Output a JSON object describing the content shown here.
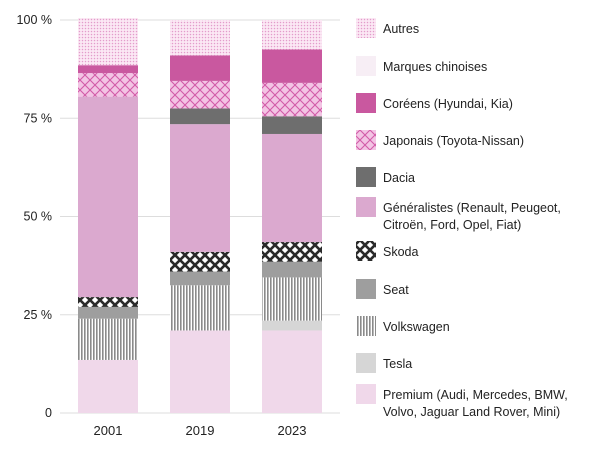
{
  "chart_data": {
    "type": "bar",
    "stacked": true,
    "categories": [
      "2001",
      "2019",
      "2023"
    ],
    "ylim": [
      0,
      100
    ],
    "yticks": [
      0,
      25,
      50,
      75,
      100
    ],
    "ytick_labels": [
      "0",
      "25 %",
      "50 %",
      "75 %",
      "100 %"
    ],
    "grid": "horizontal",
    "legend_position": "right",
    "series": [
      {
        "name": "Premium (Audi, Mercedes, BMW, Volvo, Jaguar Land Rover, Mini)",
        "legend_lines": [
          "Premium (Audi, Mercedes, BMW,",
          "Volvo, Jaguar Land Rover, Mini)"
        ],
        "color": "#f0d8ea",
        "pattern": "solid",
        "values": [
          13.5,
          21,
          21
        ]
      },
      {
        "name": "Tesla",
        "legend_lines": [
          "Tesla"
        ],
        "color": "#d6d6d6",
        "pattern": "solid",
        "values": [
          0,
          0,
          2.5
        ]
      },
      {
        "name": "Volkswagen",
        "legend_lines": [
          "Volkswagen"
        ],
        "color": "#9a9a9a",
        "pattern": "vlines",
        "values": [
          10.5,
          11.5,
          11
        ]
      },
      {
        "name": "Seat",
        "legend_lines": [
          "Seat"
        ],
        "color": "#9e9e9e",
        "pattern": "solid",
        "values": [
          3,
          3.5,
          4
        ]
      },
      {
        "name": "Skoda",
        "legend_lines": [
          "Skoda"
        ],
        "color": "#3a3a3a",
        "pattern": "xhatch",
        "values": [
          2.5,
          5,
          5
        ]
      },
      {
        "name": "Généralistes (Renault, Peugeot, Citroën, Ford, Opel, Fiat)",
        "legend_lines": [
          "Généralistes (Renault, Peugeot,",
          "Citroën, Ford, Opel, Fiat)"
        ],
        "color": "#dba9cf",
        "pattern": "solid",
        "values": [
          51,
          32.5,
          27.5
        ]
      },
      {
        "name": "Dacia",
        "legend_lines": [
          "Dacia"
        ],
        "color": "#6e6e6e",
        "pattern": "solid",
        "values": [
          0,
          4,
          4.5
        ]
      },
      {
        "name": "Japonais (Toyota-Nissan)",
        "legend_lines": [
          "Japonais (Toyota-Nissan)"
        ],
        "color": "#e59ad0",
        "pattern": "diamond",
        "values": [
          6,
          7,
          8.5
        ]
      },
      {
        "name": "Coréens (Hyundai, Kia)",
        "legend_lines": [
          "Coréens (Hyundai, Kia)"
        ],
        "color": "#c9589f",
        "pattern": "solid",
        "values": [
          2,
          6.5,
          8.5
        ]
      },
      {
        "name": "Marques chinoises",
        "legend_lines": [
          "Marques chinoises"
        ],
        "color": "#f7eef5",
        "pattern": "solid",
        "values": [
          0,
          0,
          0
        ]
      },
      {
        "name": "Autres",
        "legend_lines": [
          "Autres"
        ],
        "color": "#f2cfe6",
        "pattern": "dots",
        "values": [
          12,
          9,
          7.5
        ]
      }
    ]
  }
}
